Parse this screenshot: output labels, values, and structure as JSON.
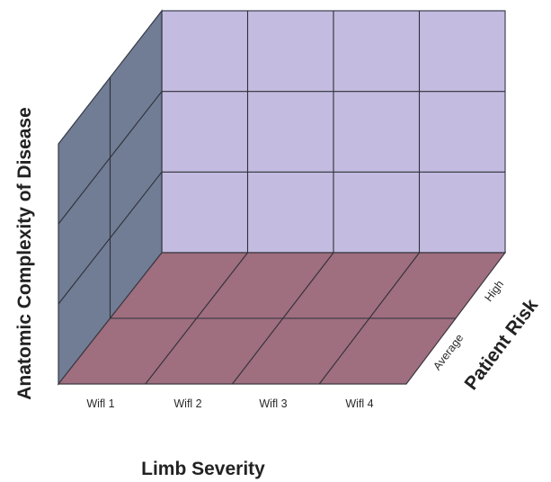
{
  "diagram": {
    "y_axis_title": "Anatomic Complexity of Disease",
    "x_axis_title": "Limb Severity",
    "z_axis_title": "Patient Risk",
    "x_ticks": [
      "Wifl 1",
      "Wifl 2",
      "Wifl 3",
      "Wifl 4"
    ],
    "z_ticks": [
      "Average",
      "High"
    ],
    "back_wall": {
      "columns": 4,
      "rows": 3
    },
    "side_wall": {
      "columns": 2,
      "rows": 3
    },
    "floor": {
      "columns": 4,
      "rows": 2
    },
    "colors": {
      "back_wall": "#c4bbe0",
      "side_wall": "#717c95",
      "floor": "#9f6e7f",
      "grid_lines": "#2e3038"
    }
  }
}
